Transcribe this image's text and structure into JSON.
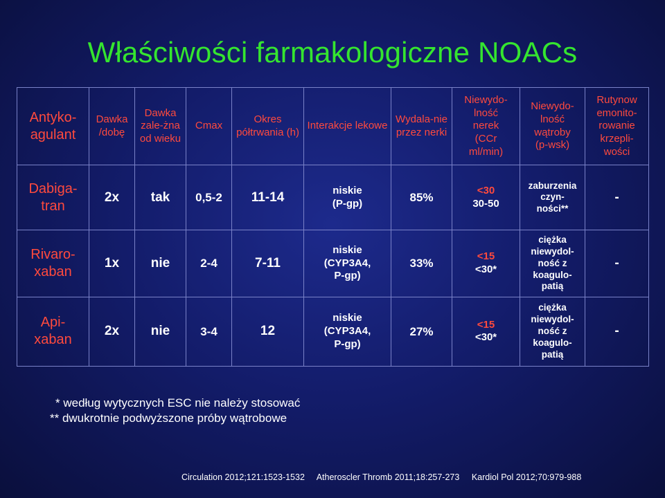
{
  "title": "Właściwości farmakologiczne NOACs",
  "headers": {
    "antykoagulant": "Antyko-agulant",
    "dawka": "Dawka /dobę",
    "dawka_zalezna": "Dawka zale-żna od wieku",
    "cmax": "Cmax",
    "okres": "Okres półtrwania (h)",
    "interakcje": "Interakcje lekowe",
    "wydalanie": "Wydala-nie przez nerki",
    "nerki": [
      "Niewydo-lność",
      "nerek",
      "(CCr",
      "ml/min)"
    ],
    "watroba": [
      "Niewydo-lność",
      "wątroby",
      "(p-wsk)"
    ],
    "rutynowe": [
      "Rutynow",
      "emonito-",
      "rowanie",
      "krzepli-",
      "wości"
    ]
  },
  "rows": [
    {
      "name": [
        "Dabiga-",
        "tran"
      ],
      "dawka": "2x",
      "zalezna": "tak",
      "cmax": "0,5-2",
      "okres": "11-14",
      "interakcje": [
        "niskie",
        "(P-gp)"
      ],
      "wydalanie": "85%",
      "nerki": [
        "<30",
        "30-50"
      ],
      "watroba": [
        "zaburzenia",
        "czyn-",
        "ności**"
      ],
      "rutynowe": "-"
    },
    {
      "name": [
        "Rivaro-",
        "xaban"
      ],
      "dawka": "1x",
      "zalezna": "nie",
      "cmax": "2-4",
      "okres": "7-11",
      "interakcje": [
        "niskie",
        "(CYP3A4,",
        "P-gp)"
      ],
      "wydalanie": "33%",
      "nerki": [
        "<15",
        "<30*"
      ],
      "watroba": [
        "ciężka",
        "niewydol-",
        "ność z",
        "koagulo-",
        "patią"
      ],
      "rutynowe": "-"
    },
    {
      "name": [
        "Api-",
        "xaban"
      ],
      "dawka": "2x",
      "zalezna": "nie",
      "cmax": "3-4",
      "okres": "12",
      "interakcje": [
        "niskie",
        "(CYP3A4,",
        "P-gp)"
      ],
      "wydalanie": "27%",
      "nerki": [
        "<15",
        "<30*"
      ],
      "watroba": [
        "ciężka",
        "niewydol-",
        "ność z",
        "koagulo-",
        "patią"
      ],
      "rutynowe": "-"
    }
  ],
  "footnotes": [
    "* według wytycznych ESC nie należy stosować",
    "** dwukrotnie podwyższone próby wątrobowe"
  ],
  "citations": [
    "Circulation 2012;121:1523-1532",
    "Atheroscler Thromb 2011;18:257-273",
    "Kardiol Pol 2012;70:979-988"
  ]
}
